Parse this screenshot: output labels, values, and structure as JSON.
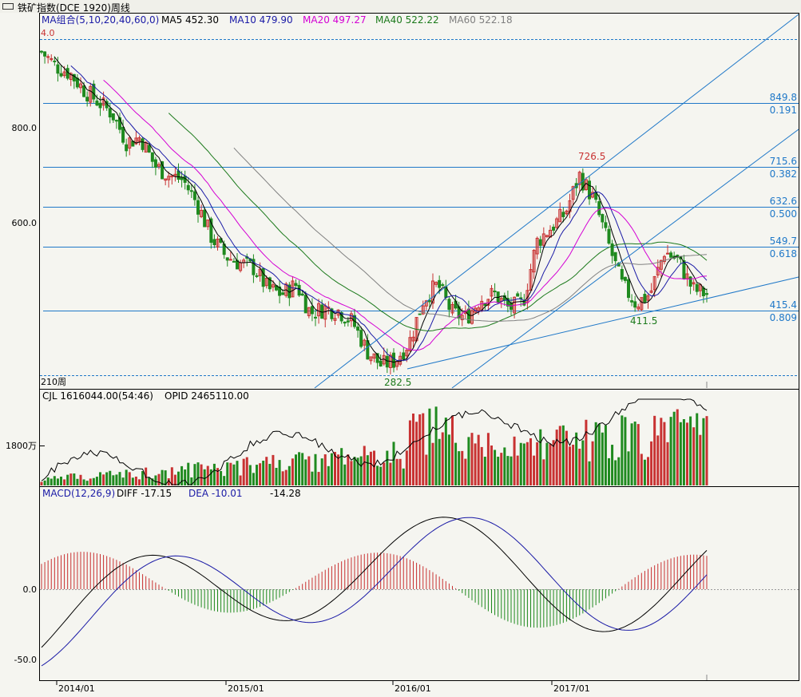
{
  "window": {
    "title": "铁矿指数(DCE 1920)周线"
  },
  "colors": {
    "ma5": "#000000",
    "ma10": "#1a1aa6",
    "ma20": "#d400d4",
    "ma40": "#1c7a1c",
    "ma60": "#808080",
    "up": "#c83232",
    "down": "#1f8a1f",
    "grid": "#1f78c8",
    "label": "#1f78c8",
    "bg": "#f5f5f0"
  },
  "price_panel": {
    "legend": [
      {
        "key": "ma_group",
        "text": "MA组合(5,10,20,40,60,0)",
        "color": "#1a1aa6"
      },
      {
        "key": "ma5",
        "text": "MA5 452.30",
        "color": "#000000"
      },
      {
        "key": "ma10",
        "text": "MA10 479.90",
        "color": "#1a1aa6"
      },
      {
        "key": "ma20",
        "text": "MA20 497.27",
        "color": "#d400d4"
      },
      {
        "key": "ma40",
        "text": "MA40 522.22",
        "color": "#1c7a1c"
      },
      {
        "key": "ma60",
        "text": "MA60 522.18",
        "color": "#808080"
      }
    ],
    "top_value_label": "4.0",
    "period_label": "210周",
    "y_ticks": [
      "800.0",
      "600.0"
    ],
    "annotations": {
      "high": "726.5",
      "low1": "282.5",
      "low2": "411.5"
    },
    "fib_levels": [
      {
        "price": "849.8",
        "ratio": "0.191"
      },
      {
        "price": "715.6",
        "ratio": "0.382"
      },
      {
        "price": "632.6",
        "ratio": "0.500"
      },
      {
        "price": "549.7",
        "ratio": "0.618"
      },
      {
        "price": "415.4",
        "ratio": "0.809"
      }
    ]
  },
  "volume_panel": {
    "legend_cjl": "CJL  1616044.00(54:46)",
    "legend_opid": "OPID  2465110.00",
    "y_tick": "1800万"
  },
  "macd_panel": {
    "legend": "MACD(12,26,9)",
    "diff": "DIFF  -17.15",
    "dea": "DEA  -10.01",
    "macd_val": "-14.28",
    "y_ticks": [
      "0.0",
      "-50.0"
    ]
  },
  "x_axis": {
    "labels": [
      "2014/01",
      "2015/01",
      "2016/01",
      "2017/01"
    ]
  },
  "chart_data": {
    "type": "candlestick",
    "interval": "weekly",
    "series_names": [
      "MA5",
      "MA10",
      "MA20",
      "MA40",
      "MA60"
    ],
    "latest": {
      "MA5": 452.3,
      "MA10": 479.9,
      "MA20": 497.27,
      "MA40": 522.22,
      "MA60": 522.18,
      "CJL": 1616044.0,
      "OPID": 2465110.0,
      "DIFF": -17.15,
      "DEA": -10.01,
      "MACD": -14.28
    },
    "price_ylim": [
      270,
      1000
    ],
    "price_series": [
      {
        "date": "2013-12",
        "close": 960
      },
      {
        "date": "2014-01",
        "close": 930
      },
      {
        "date": "2014-02",
        "close": 915
      },
      {
        "date": "2014-03",
        "close": 880
      },
      {
        "date": "2014-04",
        "close": 855
      },
      {
        "date": "2014-05",
        "close": 830
      },
      {
        "date": "2014-06",
        "close": 770
      },
      {
        "date": "2014-07",
        "close": 780
      },
      {
        "date": "2014-08",
        "close": 720
      },
      {
        "date": "2014-09",
        "close": 700
      },
      {
        "date": "2014-10",
        "close": 690
      },
      {
        "date": "2014-11",
        "close": 640
      },
      {
        "date": "2014-12",
        "close": 570
      },
      {
        "date": "2015-01",
        "close": 530
      },
      {
        "date": "2015-02",
        "close": 515
      },
      {
        "date": "2015-03",
        "close": 505
      },
      {
        "date": "2015-04",
        "close": 460
      },
      {
        "date": "2015-05",
        "close": 450
      },
      {
        "date": "2015-06",
        "close": 470
      },
      {
        "date": "2015-07",
        "close": 410
      },
      {
        "date": "2015-08",
        "close": 420
      },
      {
        "date": "2015-09",
        "close": 415
      },
      {
        "date": "2015-10",
        "close": 390
      },
      {
        "date": "2015-11",
        "close": 330
      },
      {
        "date": "2015-12",
        "close": 300
      },
      {
        "date": "2016-01",
        "close": 310
      },
      {
        "date": "2016-02",
        "close": 350
      },
      {
        "date": "2016-03",
        "close": 440
      },
      {
        "date": "2016-04",
        "close": 470
      },
      {
        "date": "2016-05",
        "close": 410
      },
      {
        "date": "2016-06",
        "close": 400
      },
      {
        "date": "2016-07",
        "close": 440
      },
      {
        "date": "2016-08",
        "close": 450
      },
      {
        "date": "2016-09",
        "close": 420
      },
      {
        "date": "2016-10",
        "close": 430
      },
      {
        "date": "2016-11",
        "close": 560
      },
      {
        "date": "2016-12",
        "close": 590
      },
      {
        "date": "2017-01",
        "close": 620
      },
      {
        "date": "2017-02",
        "close": 700
      },
      {
        "date": "2017-03",
        "close": 650
      },
      {
        "date": "2017-04",
        "close": 560
      },
      {
        "date": "2017-05",
        "close": 470
      },
      {
        "date": "2017-06",
        "close": 430
      },
      {
        "date": "2017-07",
        "close": 450
      },
      {
        "date": "2017-08",
        "close": 540
      },
      {
        "date": "2017-09",
        "close": 520
      },
      {
        "date": "2017-10",
        "close": 460
      },
      {
        "date": "2017-11",
        "close": 450
      }
    ]
  }
}
